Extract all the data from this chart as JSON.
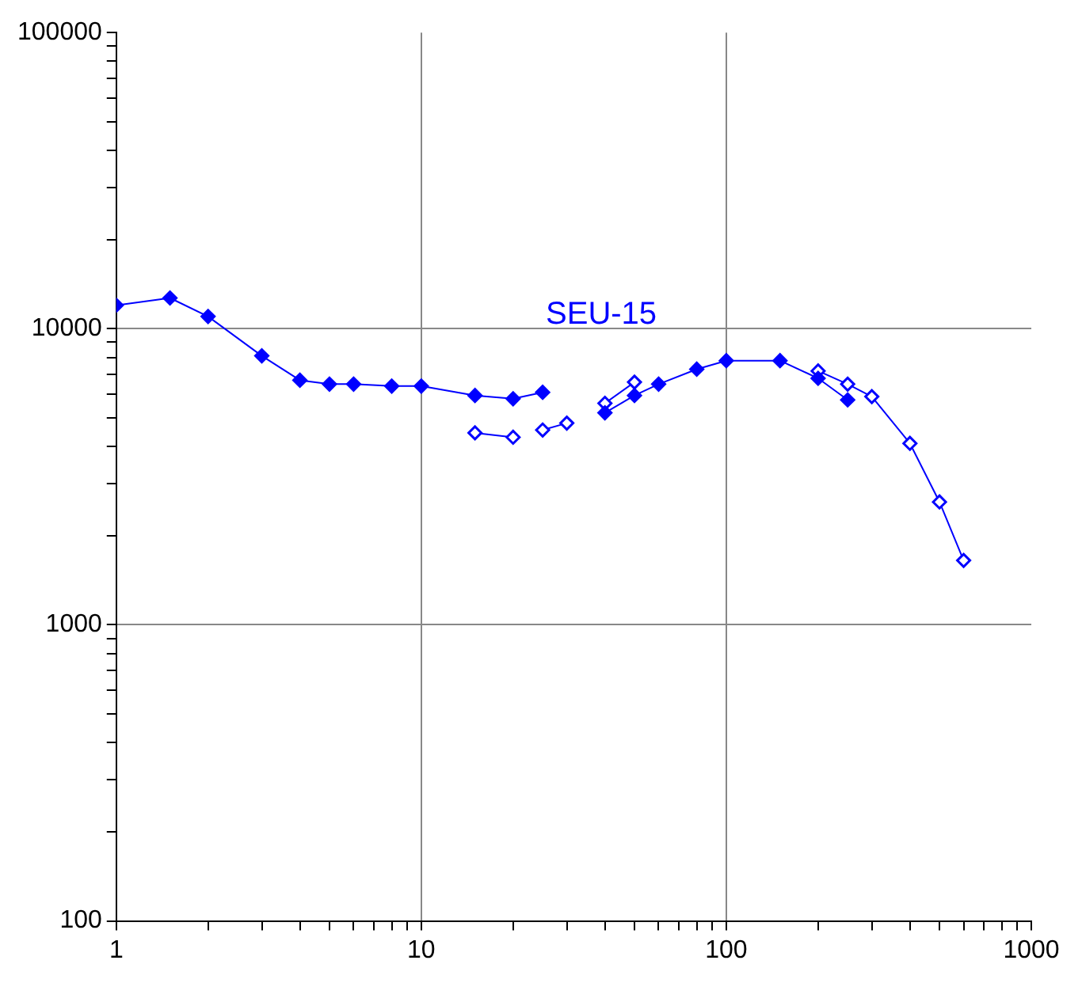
{
  "chart_data": {
    "type": "line",
    "log": "xy",
    "grid": true,
    "legend": false,
    "marker": "diamond",
    "xlim": [
      1,
      1000
    ],
    "ylim": [
      100,
      100000
    ],
    "xticks": [
      1,
      {
        "value": 2,
        "label": null
      },
      {
        "value": 3,
        "label": null
      },
      {
        "value": 4,
        "label": null
      },
      {
        "value": 5,
        "label": null
      },
      {
        "value": 6,
        "label": null
      },
      {
        "value": 7,
        "label": null
      },
      {
        "value": 8,
        "label": null
      },
      {
        "value": 9,
        "label": null
      },
      10,
      {
        "value": 20,
        "label": null
      },
      {
        "value": 30,
        "label": null
      },
      {
        "value": 40,
        "label": null
      },
      {
        "value": 50,
        "label": null
      },
      {
        "value": 60,
        "label": null
      },
      {
        "value": 70,
        "label": null
      },
      {
        "value": 80,
        "label": null
      },
      {
        "value": 90,
        "label": null
      },
      100,
      {
        "value": 200,
        "label": null
      },
      {
        "value": 300,
        "label": null
      },
      {
        "value": 400,
        "label": null
      },
      {
        "value": 500,
        "label": null
      },
      {
        "value": 600,
        "label": null
      },
      {
        "value": 700,
        "label": null
      },
      {
        "value": 800,
        "label": null
      },
      {
        "value": 900,
        "label": null
      },
      1000
    ],
    "yticks": [
      100,
      {
        "value": 200,
        "label": null
      },
      {
        "value": 300,
        "label": null
      },
      {
        "value": 400,
        "label": null
      },
      {
        "value": 500,
        "label": null
      },
      {
        "value": 600,
        "label": null
      },
      {
        "value": 700,
        "label": null
      },
      {
        "value": 800,
        "label": null
      },
      {
        "value": 900,
        "label": null
      },
      1000,
      {
        "value": 2000,
        "label": null
      },
      {
        "value": 3000,
        "label": null
      },
      {
        "value": 4000,
        "label": null
      },
      {
        "value": 5000,
        "label": null
      },
      {
        "value": 6000,
        "label": null
      },
      {
        "value": 7000,
        "label": null
      },
      {
        "value": 8000,
        "label": null
      },
      {
        "value": 9000,
        "label": null
      },
      10000,
      {
        "value": 20000,
        "label": null
      },
      {
        "value": 30000,
        "label": null
      },
      {
        "value": 40000,
        "label": null
      },
      {
        "value": 50000,
        "label": null
      },
      {
        "value": 60000,
        "label": null
      },
      {
        "value": 70000,
        "label": null
      },
      {
        "value": 80000,
        "label": null
      },
      {
        "value": 90000,
        "label": null
      },
      100000
    ],
    "annotations": [
      "SEU-15"
    ],
    "series": [
      {
        "color": "#0000ff",
        "line_style": "solid",
        "x": [
          1,
          1.5,
          2,
          3,
          4,
          5,
          6,
          8,
          10,
          15,
          20,
          25,
          32,
          40,
          50,
          60,
          80,
          100,
          150,
          200,
          250
        ],
        "values": [
          12000,
          12700,
          11000,
          8100,
          6700,
          6500,
          6500,
          6400,
          6400,
          5950,
          5800,
          6100,
          null,
          5200,
          5950,
          6500,
          7300,
          7800,
          7800,
          6800,
          5750
        ]
      },
      {
        "color": "#0000ff",
        "line_style": "solid",
        "x": [
          15,
          20,
          22,
          25,
          30,
          35,
          40,
          50,
          150,
          200,
          250,
          300,
          400,
          500,
          600
        ],
        "values": [
          4450,
          4300,
          null,
          4550,
          4800,
          null,
          5600,
          6600,
          null,
          7200,
          6500,
          5900,
          4100,
          2600,
          1650
        ]
      }
    ]
  }
}
